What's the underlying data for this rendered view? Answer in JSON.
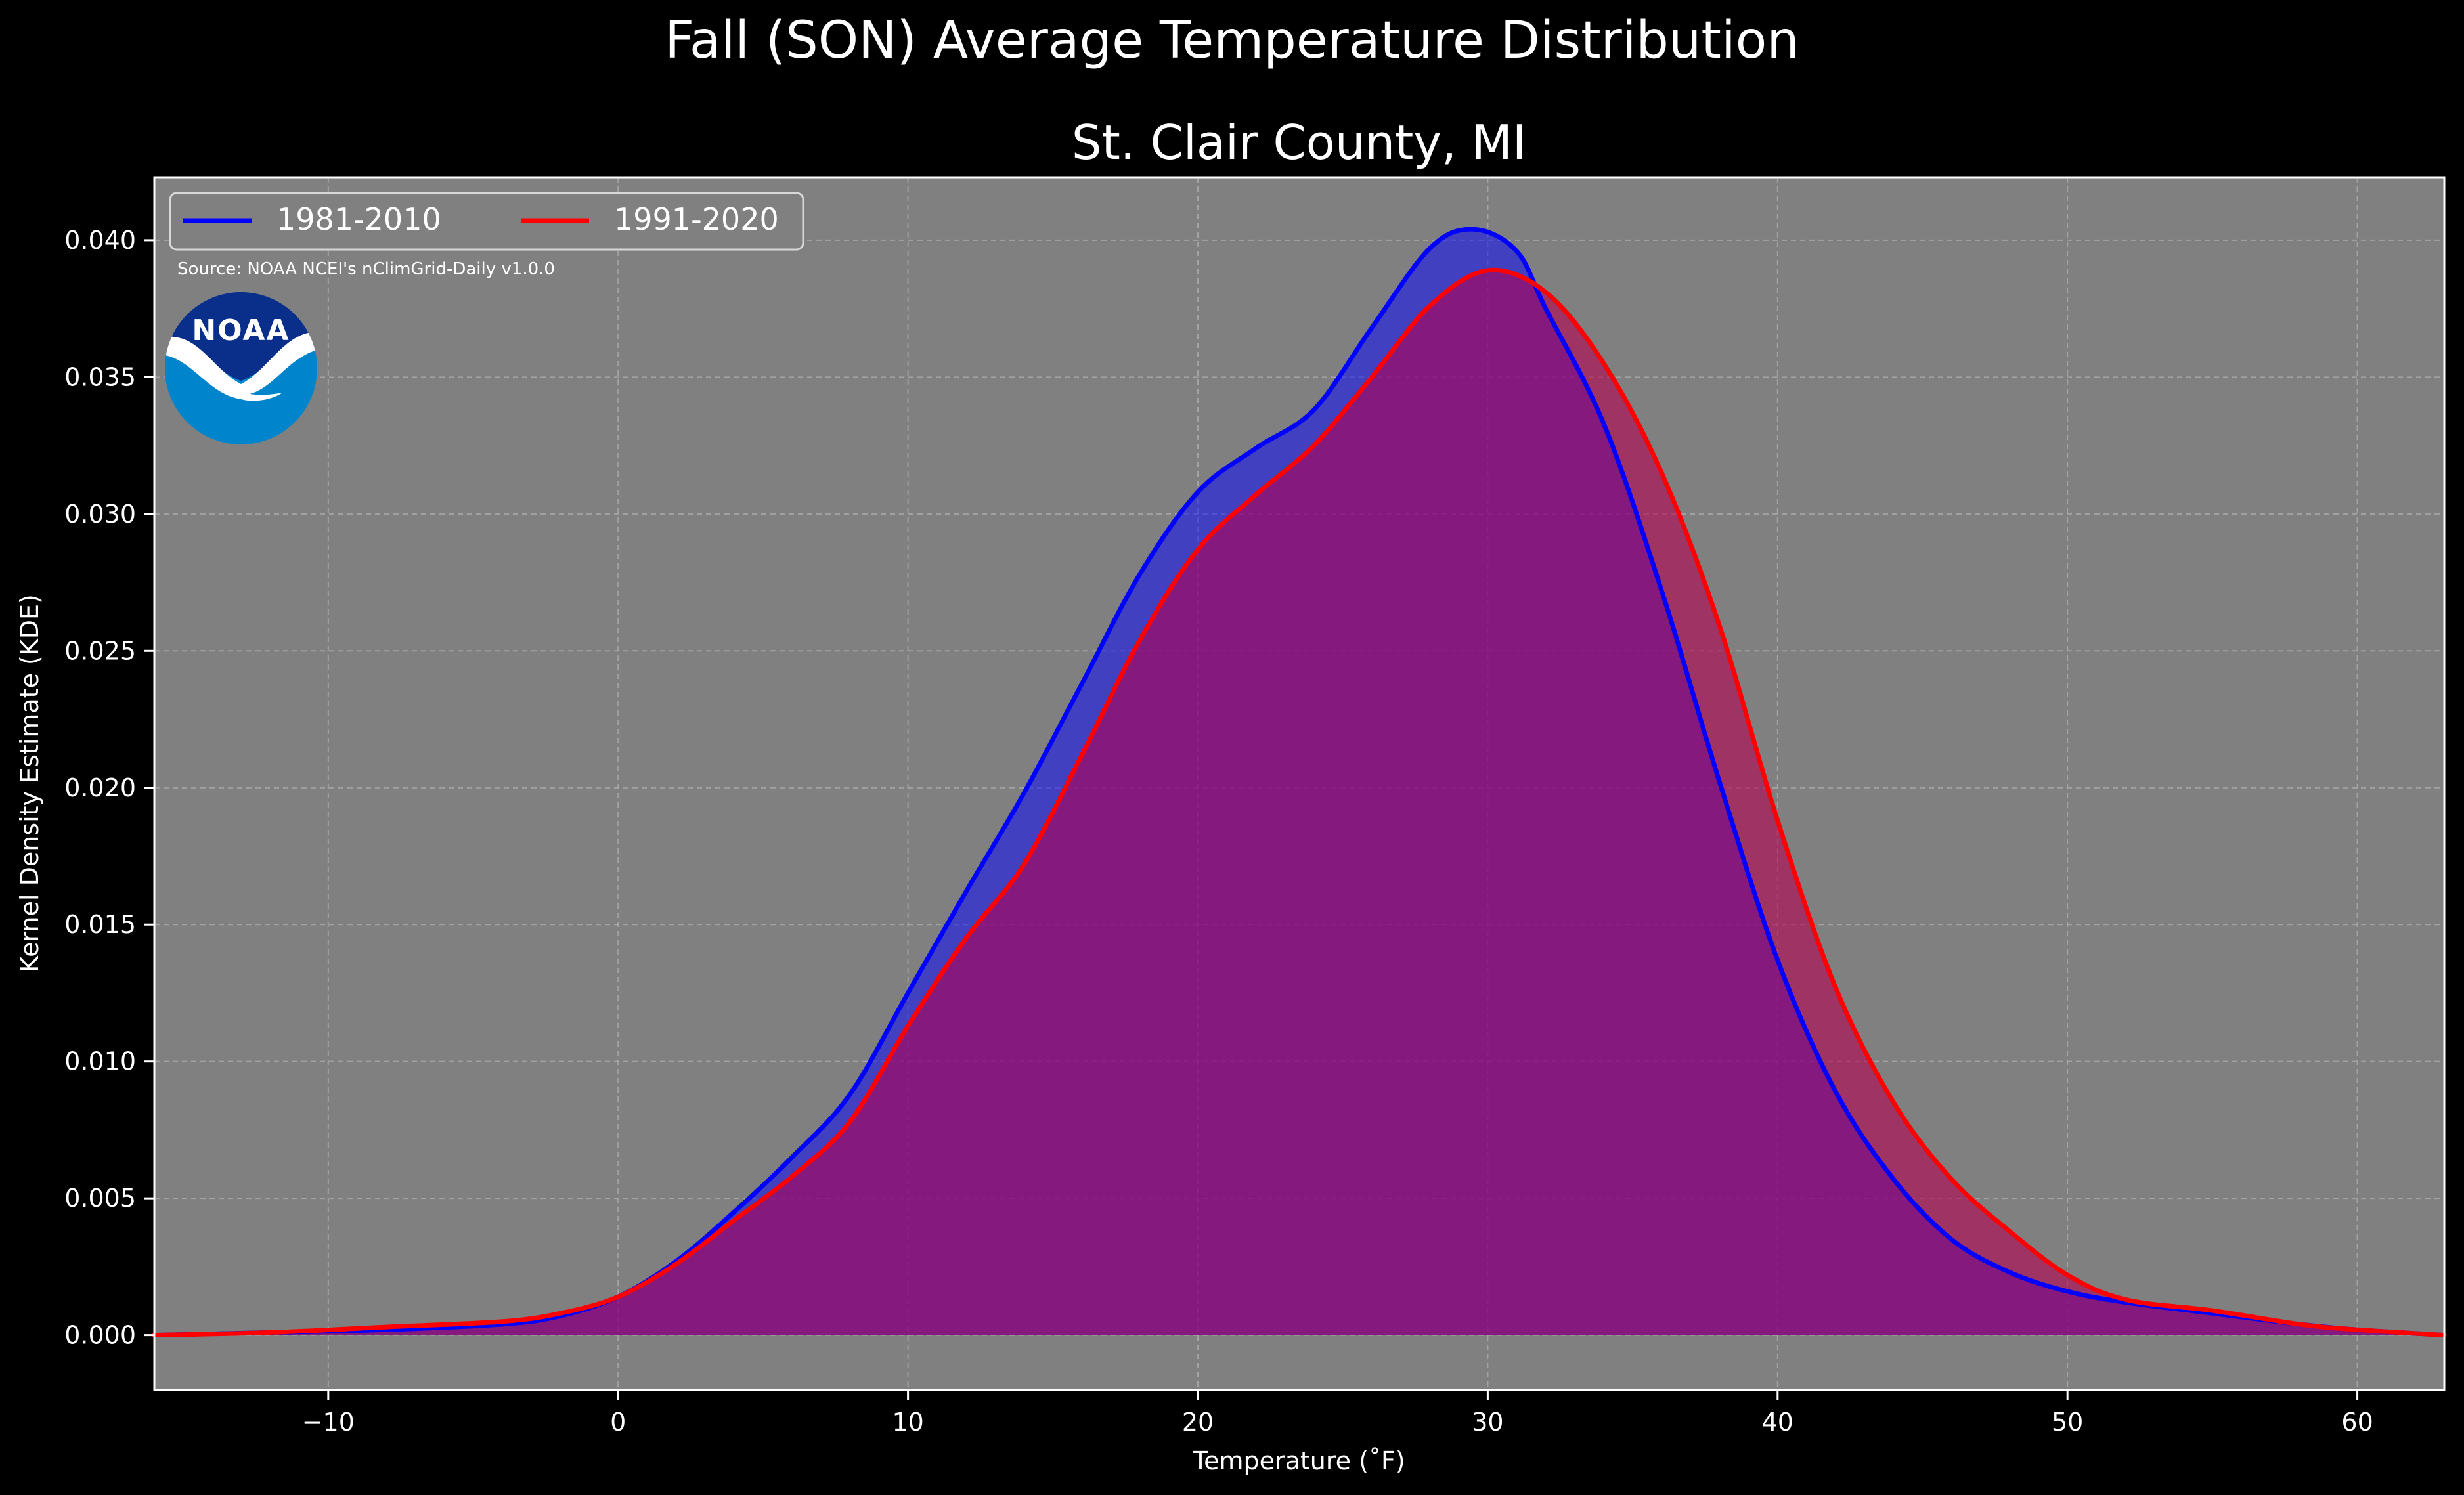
{
  "figure": {
    "suptitle": "Fall (SON) Average Temperature Distribution",
    "source_note": "Source: NOAA NCEI's nClimGrid-Daily v1.0.0",
    "logo_text": "NOAA",
    "colors": {
      "figure_bg": "#000000",
      "axes_bg": "#808080",
      "text": "#ffffff",
      "grid": "#b0b0b0",
      "noaa_dark": "#0a2f8a",
      "noaa_light": "#0084cc"
    }
  },
  "chart_data": {
    "type": "area",
    "title": "St. Clair County, MI",
    "xlabel": "Temperature (˚F)",
    "ylabel": "Kernel Density Estimate (KDE)",
    "xlim": [
      -16,
      63
    ],
    "ylim": [
      -0.002,
      0.0423
    ],
    "xticks": [
      -10,
      0,
      10,
      20,
      30,
      40,
      50,
      60
    ],
    "xtick_labels": [
      "−10",
      "0",
      "10",
      "20",
      "30",
      "40",
      "50",
      "60"
    ],
    "yticks": [
      0.0,
      0.005,
      0.01,
      0.015,
      0.02,
      0.025,
      0.03,
      0.035,
      0.04
    ],
    "ytick_labels": [
      "0.000",
      "0.005",
      "0.010",
      "0.015",
      "0.020",
      "0.025",
      "0.030",
      "0.035",
      "0.040"
    ],
    "grid": true,
    "legend_placement": "top-left",
    "series": [
      {
        "name": "1981-2010",
        "color": "#0000ff",
        "fill": "rgba(0,0,255,0.5)",
        "x": [
          -16,
          -12,
          -8,
          -4,
          -2,
          0,
          2,
          4,
          6,
          8,
          10,
          12,
          14,
          16,
          18,
          20,
          22,
          24,
          26,
          28,
          29.5,
          31,
          32,
          34,
          36,
          38,
          40,
          42,
          44,
          46,
          48,
          50,
          52,
          55,
          58,
          60,
          63
        ],
        "values": [
          0.0,
          0.0001,
          0.0002,
          0.0004,
          0.0007,
          0.0014,
          0.0027,
          0.0045,
          0.0065,
          0.0088,
          0.0125,
          0.0162,
          0.0198,
          0.0238,
          0.0278,
          0.0308,
          0.0324,
          0.0338,
          0.0368,
          0.0397,
          0.0404,
          0.0396,
          0.0375,
          0.0333,
          0.0272,
          0.0202,
          0.0137,
          0.0089,
          0.0057,
          0.0035,
          0.0023,
          0.0016,
          0.0012,
          0.0008,
          0.0004,
          0.0002,
          0.0
        ]
      },
      {
        "name": "1991-2020",
        "color": "#ff0000",
        "fill": "rgba(180,0,80,0.6)",
        "x": [
          -16,
          -12,
          -8,
          -4,
          -2,
          0,
          2,
          4,
          6,
          8,
          10,
          12,
          14,
          16,
          18,
          20,
          22,
          24,
          26,
          28,
          30,
          32,
          34,
          36,
          38,
          40,
          42,
          44,
          46,
          48,
          50,
          52,
          55,
          58,
          60,
          63
        ],
        "values": [
          0.0,
          0.0001,
          0.0003,
          0.0005,
          0.0008,
          0.0014,
          0.0026,
          0.0042,
          0.0058,
          0.0078,
          0.0113,
          0.0145,
          0.0172,
          0.0212,
          0.0254,
          0.0287,
          0.0307,
          0.0325,
          0.035,
          0.0376,
          0.0389,
          0.0381,
          0.0355,
          0.0315,
          0.0259,
          0.0188,
          0.0127,
          0.0085,
          0.0057,
          0.0038,
          0.0022,
          0.0013,
          0.0009,
          0.0004,
          0.0002,
          0.0
        ]
      }
    ]
  }
}
